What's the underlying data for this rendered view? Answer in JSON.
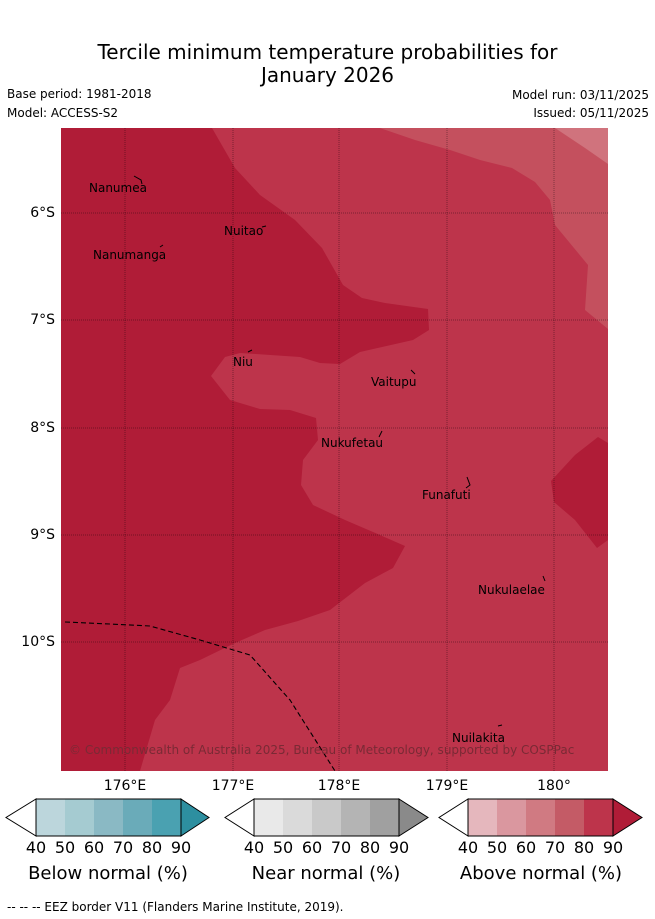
{
  "header": {
    "title_line1": "Tercile minimum temperature probabilities for",
    "title_line2": "January 2026",
    "base_period": "Base period: 1981-2018",
    "model": "Model: ACCESS-S2",
    "model_run": "Model run: 03/11/2025",
    "issued": "Issued: 05/11/2025"
  },
  "map": {
    "colors": {
      "dark": "#b01c37",
      "mid": "#bd344b",
      "light": "#c4505e",
      "lightest": "#d0737d"
    },
    "lat_labels": [
      "6°S",
      "7°S",
      "8°S",
      "9°S",
      "10°S"
    ],
    "lon_labels": [
      "176°E",
      "177°E",
      "178°E",
      "179°E",
      "180°"
    ],
    "places": [
      "Nanumea",
      "Nuitao",
      "Nanumanga",
      "Niu",
      "Vaitupu",
      "Nukufetau",
      "Funafuti",
      "Nukulaelae",
      "Nuilakita"
    ],
    "copyright": "© Commonwealth of Australia 2025, Bureau of Meteorology, supported by COSPPac"
  },
  "colorbars": [
    {
      "title": "Below normal (%)",
      "ticks": [
        "40",
        "50",
        "60",
        "70",
        "80",
        "90"
      ],
      "colors": [
        "#ffffff",
        "#bcd6dc",
        "#a5cbd1",
        "#8ab9c4",
        "#6aabb9",
        "#4aa1b1",
        "#2d8fa0"
      ]
    },
    {
      "title": "Near normal (%)",
      "ticks": [
        "40",
        "50",
        "60",
        "70",
        "80",
        "90"
      ],
      "colors": [
        "#ffffff",
        "#e9e9e9",
        "#dadada",
        "#c9c9c9",
        "#b4b4b4",
        "#a0a0a0",
        "#8a8a8a"
      ]
    },
    {
      "title": "Above normal (%)",
      "ticks": [
        "40",
        "50",
        "60",
        "70",
        "80",
        "90"
      ],
      "colors": [
        "#ffffff",
        "#e5b7bd",
        "#da979f",
        "#d07a82",
        "#c45b66",
        "#bd344b",
        "#b01c37"
      ]
    }
  ],
  "footer": {
    "eez_text": "--  --  -- EEZ border V11 (Flanders Marine Institute, 2019)."
  }
}
